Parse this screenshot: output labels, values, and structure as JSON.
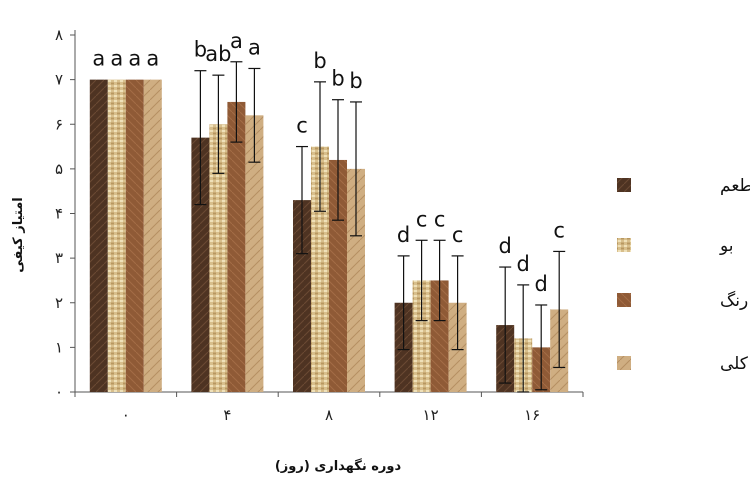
{
  "chart_data": {
    "type": "bar",
    "title": "",
    "xlabel": "دوره نگهداری (روز)",
    "ylabel": "امتیاز کیفی",
    "ylim": [
      0,
      8
    ],
    "y_ticks": [
      "۰",
      "۱",
      "۲",
      "۳",
      "۴",
      "۵",
      "۶",
      "۷",
      "۸"
    ],
    "categories": [
      "۰",
      "۴",
      "۸",
      "۱۲",
      "۱۶"
    ],
    "legend_position": "right",
    "series": [
      {
        "name": "طعم",
        "color": "#4e3322",
        "values": [
          7.0,
          5.7,
          4.3,
          2.0,
          1.5
        ],
        "errors": [
          0,
          1.5,
          1.2,
          1.05,
          1.3
        ],
        "letters": [
          "a",
          "b",
          "c",
          "d",
          "d"
        ]
      },
      {
        "name": "بو",
        "color": "#d6bc86",
        "values": [
          7.0,
          6.0,
          5.5,
          2.5,
          1.2
        ],
        "errors": [
          0,
          1.1,
          1.45,
          0.9,
          1.2
        ],
        "letters": [
          "a",
          "ab",
          "b",
          "c",
          "d"
        ]
      },
      {
        "name": "رنگ",
        "color": "#8f5a36",
        "values": [
          7.0,
          6.5,
          5.2,
          2.5,
          1.0
        ],
        "errors": [
          0,
          0.9,
          1.35,
          0.9,
          0.95
        ],
        "letters": [
          "a",
          "a",
          "b",
          "c",
          "d"
        ]
      },
      {
        "name": "پذیرش کلی",
        "color": "#c9a57a",
        "values": [
          7.0,
          6.2,
          5.0,
          2.0,
          1.85
        ],
        "errors": [
          0,
          1.05,
          1.5,
          1.05,
          1.3
        ],
        "letters": [
          "a",
          "a",
          "b",
          "c",
          "c"
        ]
      }
    ]
  }
}
